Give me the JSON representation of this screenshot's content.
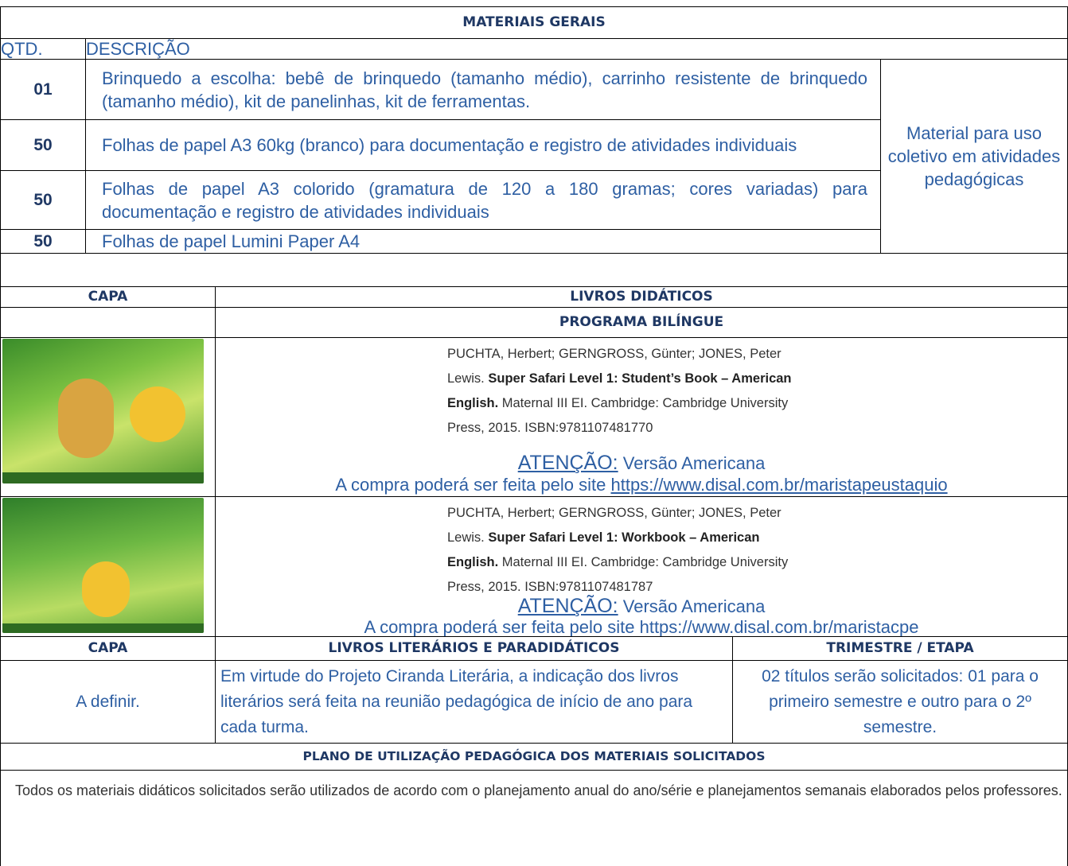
{
  "materiais_gerais": {
    "title": "MATERIAIS GERAIS",
    "header": [
      "QTD.",
      "DESCRIÇÃO"
    ],
    "items": [
      {
        "qtd": "01",
        "descricao": "Brinquedo a escolha: bebê de brinquedo (tamanho médio), carrinho resistente de brinquedo (tamanho médio), kit de panelinhas, kit de ferramentas."
      },
      {
        "qtd": "50",
        "descricao": "Folhas de papel A3 60kg (branco) para documentação e registro de atividades individuais"
      },
      {
        "qtd": "50",
        "descricao": "Folhas de papel A3 colorido (gramatura de 120 a 180 gramas; cores variadas) para documentação e registro de atividades individuais"
      },
      {
        "qtd": "50",
        "descricao": "Folhas de papel Lumini Paper A4"
      }
    ],
    "nota": "Material para uso coletivo em atividades pedagógicas"
  },
  "livros_didaticos": {
    "header": [
      "CAPA",
      "LIVROS DIDÁTICOS"
    ],
    "programa": "PROGRAMA BILÍNGUE",
    "livros": [
      {
        "referencia": [
          [
            {
              "text": "PUCHTA, Herbert; GERNGROSS, Günter; JONES, Peter"
            }
          ],
          [
            {
              "text": "Lewis. "
            },
            {
              "text": "Super Safari Level 1: Student’s Book – American",
              "bold": true
            }
          ],
          [
            {
              "text": "English.",
              "bold": true
            },
            {
              "text": " Maternal III EI. Cambridge: Cambridge University"
            }
          ],
          [
            {
              "text": "Press, 2015. ISBN:9781107481770"
            }
          ]
        ],
        "atencao": "ATENÇÃO:",
        "versao": " Versão Americana",
        "compra": "A compra poderá ser feita pelo site ",
        "site": "https://www.disal.com.br/maristapeustaquio",
        "site_link": true
      },
      {
        "referencia": [
          [
            {
              "text": "PUCHTA, Herbert; GERNGROSS, Günter; JONES, Peter"
            }
          ],
          [
            {
              "text": "Lewis. "
            },
            {
              "text": "Super Safari Level 1: Workbook – American",
              "bold": true
            }
          ],
          [
            {
              "text": "English.",
              "bold": true
            },
            {
              "text": " Maternal III EI. Cambridge: Cambridge University"
            }
          ],
          [
            {
              "text": "Press, 2015. ISBN:9781107481787"
            }
          ]
        ],
        "atencao": "ATENÇÃO:",
        "versao": " Versão Americana",
        "compra": "A compra poderá ser feita pelo site ",
        "site": "https://www.disal.com.br/maristacpe",
        "site_link": false
      }
    ]
  },
  "literarios": {
    "header": [
      "CAPA",
      "LIVROS LITERÁRIOS E PARADIDÁTICOS",
      "TRIMESTRE / ETAPA"
    ],
    "row": [
      "A definir.",
      "Em virtude do Projeto Ciranda Literária, a indicação dos livros literários será feita na reunião pedagógica de início de ano para cada turma.",
      "02 títulos serão solicitados: 01 para o primeiro semestre e outro para o 2º semestre."
    ]
  },
  "plano": {
    "title": "PLANO DE UTILIZAÇÃO PEDAGÓGICA DOS MATERIAIS SOLICITADOS",
    "texto": "Todos os materiais didáticos solicitados serão utilizados de acordo com o planejamento anual do ano/série e planejamentos semanais elaborados pelos professores."
  }
}
